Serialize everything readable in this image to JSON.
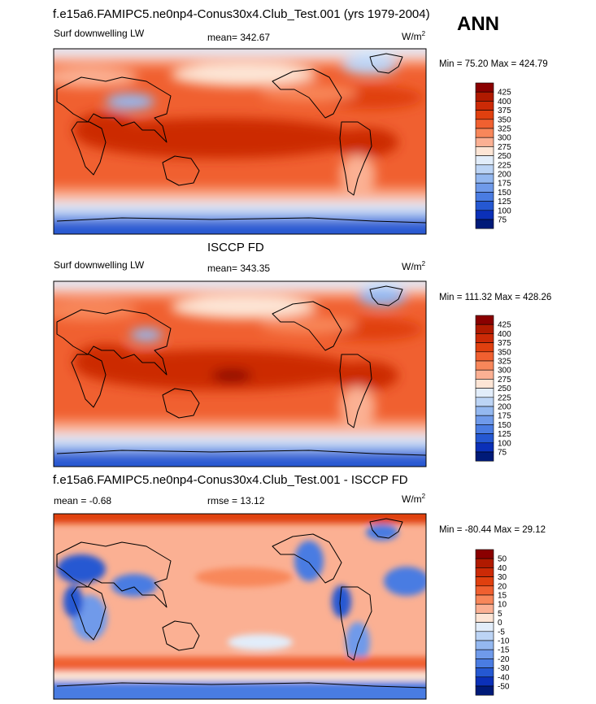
{
  "header": {
    "title": "f.e15a6.FAMIPC5.ne0np4-Conus30x4.Club_Test.001 (yrs 1979-2004)",
    "season": "ANN"
  },
  "panels": [
    {
      "title": "",
      "left_label": "Surf downwelling LW",
      "center_label": "mean= 342.67",
      "unit_base": "W/m",
      "unit_exp": "2",
      "minmax": "Min =  75.20 Max = 424.79"
    },
    {
      "title": "ISCCP FD",
      "left_label": "Surf downwelling LW",
      "center_label": "mean= 343.35",
      "unit_base": "W/m",
      "unit_exp": "2",
      "minmax": "Min = 111.32 Max = 428.26"
    },
    {
      "title": "f.e15a6.FAMIPC5.ne0np4-Conus30x4.Club_Test.001 - ISCCP FD",
      "left_label": "mean =  -0.68",
      "center_label": "rmse =  13.12",
      "unit_base": "W/m",
      "unit_exp": "2",
      "minmax": "Min = -80.44 Max =  29.12"
    }
  ],
  "chart_data": [
    {
      "type": "heatmap",
      "title": "",
      "variable": "Surf downwelling LW",
      "mean": 342.67,
      "min": 75.2,
      "max": 424.79,
      "units": "W/m2",
      "colorbar_levels": [
        "425",
        "400",
        "375",
        "350",
        "325",
        "300",
        "275",
        "250",
        "225",
        "200",
        "175",
        "150",
        "125",
        "100",
        "75"
      ],
      "colorbar_colors": [
        "#8a0000",
        "#b01a00",
        "#cc2a06",
        "#e0400f",
        "#f06030",
        "#f8875a",
        "#fbb093",
        "#fde5d5",
        "#e2edfa",
        "#bcd4f5",
        "#94b8f0",
        "#6f9aea",
        "#4a7ce2",
        "#2558d2",
        "#0b30b8",
        "#001a78"
      ]
    },
    {
      "type": "heatmap",
      "title": "ISCCP FD",
      "variable": "Surf downwelling LW",
      "mean": 343.35,
      "min": 111.32,
      "max": 428.26,
      "units": "W/m2",
      "colorbar_levels": [
        "425",
        "400",
        "375",
        "350",
        "325",
        "300",
        "275",
        "250",
        "225",
        "200",
        "175",
        "150",
        "125",
        "100",
        "75"
      ],
      "colorbar_colors": [
        "#8a0000",
        "#b01a00",
        "#cc2a06",
        "#e0400f",
        "#f06030",
        "#f8875a",
        "#fbb093",
        "#fde5d5",
        "#e2edfa",
        "#bcd4f5",
        "#94b8f0",
        "#6f9aea",
        "#4a7ce2",
        "#2558d2",
        "#0b30b8",
        "#001a78"
      ]
    },
    {
      "type": "heatmap",
      "title": "f.e15a6.FAMIPC5.ne0np4-Conus30x4.Club_Test.001 - ISCCP FD",
      "mean": -0.68,
      "rmse": 13.12,
      "min": -80.44,
      "max": 29.12,
      "units": "W/m2",
      "colorbar_levels": [
        "50",
        "40",
        "30",
        "20",
        "15",
        "10",
        "5",
        "0",
        "-5",
        "-10",
        "-15",
        "-20",
        "-30",
        "-40",
        "-50"
      ],
      "colorbar_colors": [
        "#8a0000",
        "#b01a00",
        "#cc2a06",
        "#e0400f",
        "#f06030",
        "#f8875a",
        "#fbb093",
        "#fde5d5",
        "#e2edfa",
        "#bcd4f5",
        "#94b8f0",
        "#6f9aea",
        "#4a7ce2",
        "#2558d2",
        "#0b30b8",
        "#001a78"
      ]
    }
  ]
}
